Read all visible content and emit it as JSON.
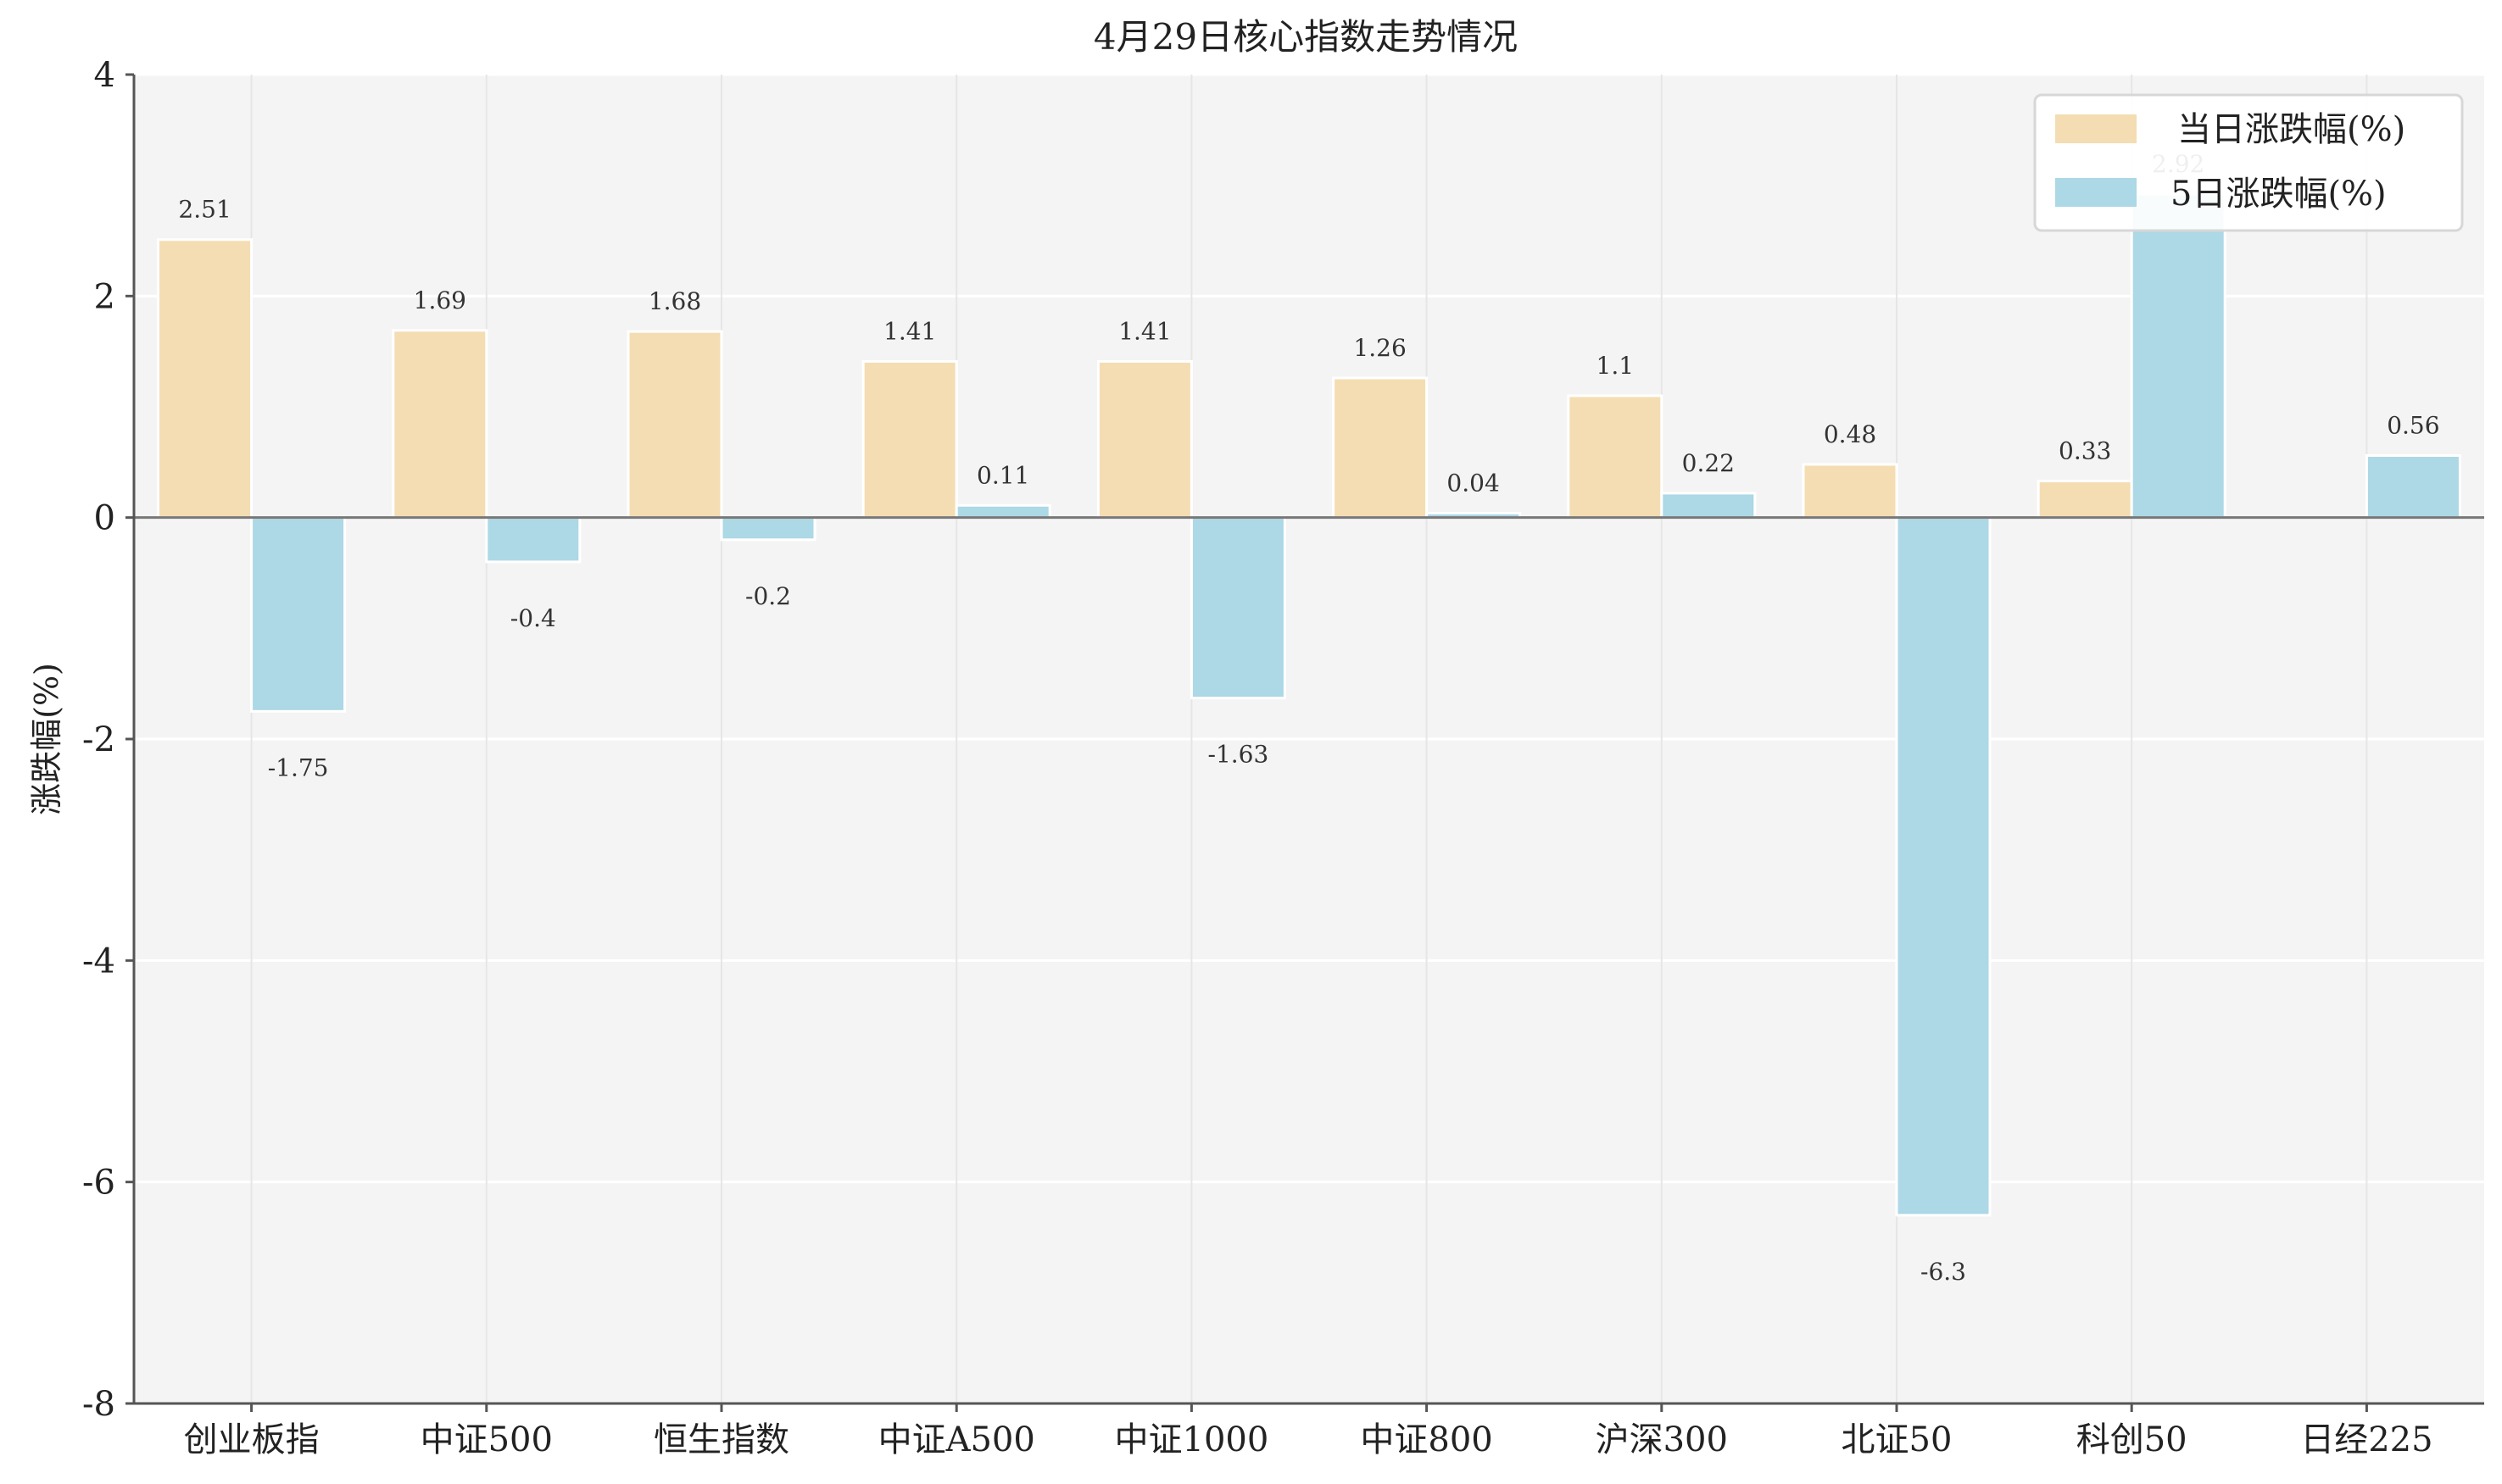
{
  "chart_data": {
    "type": "bar",
    "title": "4月29日核心指数走势情况",
    "xlabel": "",
    "ylabel": "涨跌幅(%)",
    "ylim": [
      -8,
      4
    ],
    "yticks": [
      4,
      2,
      0,
      -2,
      -4,
      -6,
      -8
    ],
    "ytick_labels": [
      "4",
      "2",
      "0",
      "-2",
      "-4",
      "-6",
      "-8"
    ],
    "grid": true,
    "legend_position": "top-right",
    "categories": [
      "创业板指",
      "中证500",
      "恒生指数",
      "中证A500",
      "中证1000",
      "中证800",
      "沪深300",
      "北证50",
      "科创50",
      "日经225"
    ],
    "series": [
      {
        "name": "当日涨跌幅(%)",
        "color": "#F4DDB2",
        "values": [
          2.51,
          1.69,
          1.68,
          1.41,
          1.41,
          1.26,
          1.1,
          0.48,
          0.33,
          null
        ],
        "labels": [
          "2.51",
          "1.69",
          "1.68",
          "1.41",
          "1.41",
          "1.26",
          "1.1",
          "0.48",
          "0.33",
          ""
        ]
      },
      {
        "name": "5日涨跌幅(%)",
        "color": "#ADD8E6",
        "values": [
          -1.75,
          -0.4,
          -0.2,
          0.11,
          -1.63,
          0.04,
          0.22,
          -6.3,
          2.92,
          0.56
        ],
        "labels": [
          "-1.75",
          "-0.4",
          "-0.2",
          "0.11",
          "-1.63",
          "0.04",
          "0.22",
          "-6.3",
          "2.92",
          "0.56"
        ]
      }
    ],
    "plot_background": "#F4F4F4",
    "axis_color": "#555555",
    "grid_color": "#FFFFFF"
  }
}
